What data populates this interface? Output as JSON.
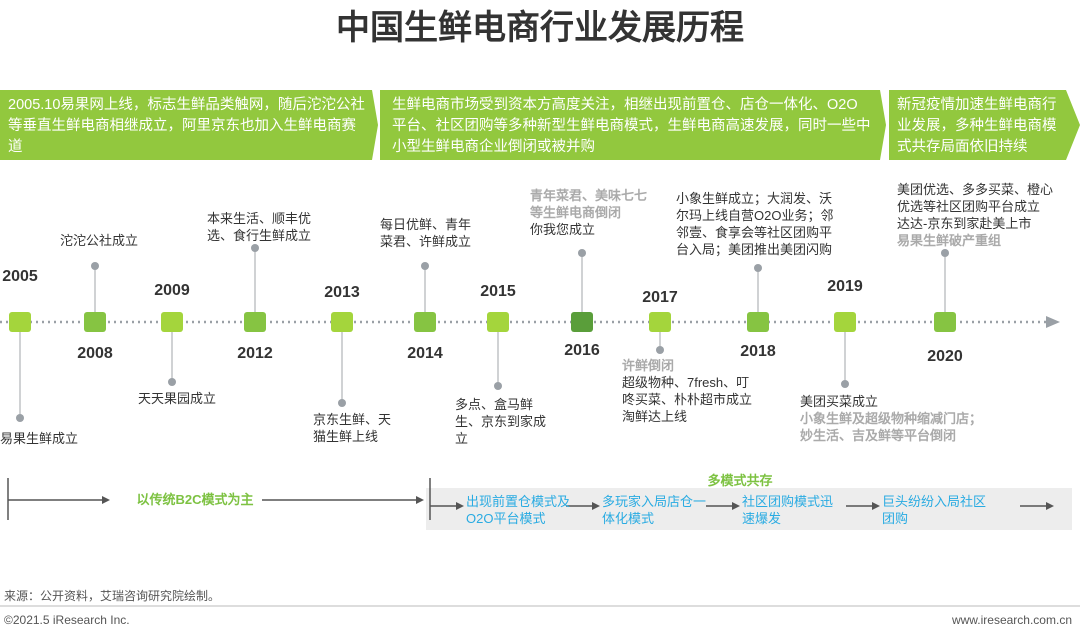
{
  "title": "中国生鲜电商行业发展历程",
  "phases": [
    "2005.10易果网上线，标志生鲜品类触网，随后沱沱公社等垂直生鲜电商相继成立，阿里京东也加入生鲜电商赛道",
    "生鲜电商市场受到资本方高度关注，相继出现前置仓、店仓一体化、O2O平台、社区团购等多种新型生鲜电商模式，生鲜电商高速发展，同时一些中小型生鲜电商企业倒闭或被并购",
    "新冠疫情加速生鲜电商行业发展，多种生鲜电商模式共存局面依旧持续"
  ],
  "timeline": [
    {
      "year": "2005",
      "color": "#a4d53c",
      "events": [
        {
          "text": "易果生鲜成立",
          "color": "#333333"
        }
      ]
    },
    {
      "year": "2008",
      "color": "#86c442",
      "events": [
        {
          "text": "沱沱公社成立",
          "color": "#333333"
        }
      ]
    },
    {
      "year": "2009",
      "color": "#a4d53c",
      "events": [
        {
          "text": "天天果园成立",
          "color": "#333333"
        }
      ]
    },
    {
      "year": "2012",
      "color": "#86c442",
      "events": [
        {
          "text": "本来生活、顺丰优选、食行生鲜成立",
          "color": "#333333"
        }
      ]
    },
    {
      "year": "2013",
      "color": "#a4d53c",
      "events": [
        {
          "text": "京东生鲜、天猫生鲜上线",
          "color": "#333333"
        }
      ]
    },
    {
      "year": "2014",
      "color": "#86c442",
      "events": [
        {
          "text": "每日优鲜、青年菜君、许鲜成立",
          "color": "#333333"
        }
      ]
    },
    {
      "year": "2015",
      "color": "#a4d53c",
      "events": [
        {
          "text": "多点、盒马鲜生、京东到家成立",
          "color": "#333333"
        }
      ]
    },
    {
      "year": "2016",
      "color": "#5a9e3a",
      "events": [
        {
          "text": "青年菜君、美味七七等生鲜电商倒闭",
          "color": "#aaaaaa"
        },
        {
          "text": "你我您成立",
          "color": "#333333"
        }
      ]
    },
    {
      "year": "2017",
      "color": "#a4d53c",
      "events": [
        {
          "text": "许鲜倒闭",
          "color": "#aaaaaa"
        },
        {
          "text": "超级物种、7fresh、叮咚买菜、朴朴超市成立",
          "color": "#333333"
        },
        {
          "text": "淘鲜达上线",
          "color": "#333333"
        }
      ]
    },
    {
      "year": "2018",
      "color": "#86c442",
      "events": [
        {
          "text": "小象生鲜成立；大润发、沃尔玛上线自营O2O业务；邻邻壹、食享会等社区团购平台入局；美团推出美团闪购",
          "color": "#333333"
        }
      ]
    },
    {
      "year": "2019",
      "color": "#a4d53c",
      "events": [
        {
          "text": "美团买菜成立",
          "color": "#333333"
        },
        {
          "text": "小象生鲜及超级物种缩减门店；妙生活、吉及鲜等平台倒闭",
          "color": "#aaaaaa"
        }
      ]
    },
    {
      "year": "2020",
      "color": "#86c442",
      "events": [
        {
          "text": "美团优选、多多买菜、橙心优选等社区团购平台成立",
          "color": "#333333"
        },
        {
          "text": "达达-京东到家赴美上市",
          "color": "#333333"
        },
        {
          "text": "易果生鲜破产重组",
          "color": "#aaaaaa"
        }
      ]
    }
  ],
  "stages": {
    "early": "以传统B2C模式为主",
    "multi": "多模式共存",
    "steps": [
      "出现前置仓模式及O2O平台模式",
      "多玩家入局店仓一体化模式",
      "社区团购模式迅速爆发",
      "巨头纷纷入局社区团购"
    ]
  },
  "footer": {
    "source": "来源：公开资料，艾瑞咨询研究院绘制。",
    "copyright": "©2021.5 iResearch Inc.",
    "website": "www.iresearch.com.cn"
  }
}
